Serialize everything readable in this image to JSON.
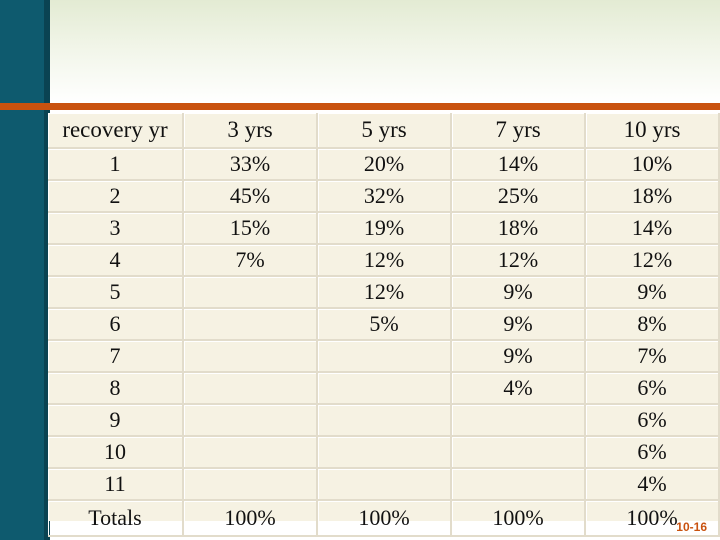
{
  "table": {
    "header": [
      "recovery yr",
      "3 yrs",
      "5 yrs",
      "7 yrs",
      "10 yrs"
    ],
    "rows": [
      [
        "1",
        "33%",
        "20%",
        "14%",
        "10%"
      ],
      [
        "2",
        "45%",
        "32%",
        "25%",
        "18%"
      ],
      [
        "3",
        "15%",
        "19%",
        "18%",
        "14%"
      ],
      [
        "4",
        "7%",
        "12%",
        "12%",
        "12%"
      ],
      [
        "5",
        "",
        "12%",
        "9%",
        "9%"
      ],
      [
        "6",
        "",
        "5%",
        "9%",
        "8%"
      ],
      [
        "7",
        "",
        "",
        "9%",
        "7%"
      ],
      [
        "8",
        "",
        "",
        "4%",
        "6%"
      ],
      [
        "9",
        "",
        "",
        "",
        "6%"
      ],
      [
        "10",
        "",
        "",
        "",
        "6%"
      ],
      [
        "11",
        "",
        "",
        "",
        "4%"
      ]
    ],
    "totals": [
      "Totals",
      "100%",
      "100%",
      "100%",
      "100%"
    ]
  },
  "footer": {
    "slide_number": "10-16"
  },
  "colors": {
    "left_bar": "#0e5a6e",
    "accent": "#c9520f",
    "header_band": "#e3ebd3",
    "table_fill": "#f6f2e3",
    "cell_border": "#e2dccb"
  }
}
